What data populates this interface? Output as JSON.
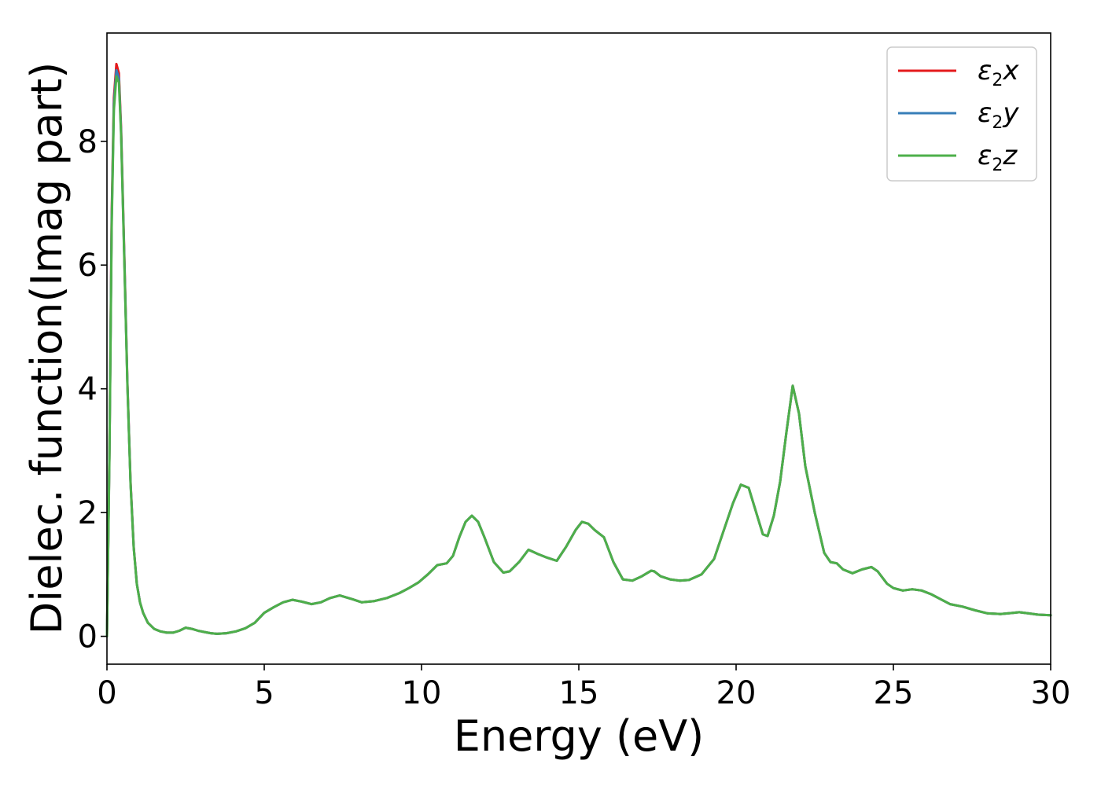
{
  "chart_data": {
    "type": "line",
    "xlabel": "Energy (eV)",
    "ylabel": "Dielec. function(Imag part)",
    "xlim": [
      0,
      30
    ],
    "ylim": [
      -0.45,
      9.75
    ],
    "xticks": [
      0,
      5,
      10,
      15,
      20,
      25,
      30
    ],
    "yticks": [
      0,
      2,
      4,
      6,
      8
    ],
    "grid": false,
    "legend_position": "top-right",
    "series": [
      {
        "name": "ε2x",
        "legend": {
          "base": "ε",
          "sub": "2",
          "axis": "x"
        },
        "color": "#e41a1c",
        "x": [
          0,
          0.08,
          0.15,
          0.22,
          0.3,
          0.38,
          0.45,
          0.55,
          0.65,
          0.75,
          0.85,
          0.95,
          1.05,
          1.15,
          1.3,
          1.5,
          1.7,
          1.9,
          2.1,
          2.3,
          2.5,
          2.7,
          2.9,
          3.1,
          3.3,
          3.5,
          3.8,
          4.1,
          4.4,
          4.7,
          5.0,
          5.3,
          5.6,
          5.9,
          6.2,
          6.5,
          6.8,
          7.1,
          7.4,
          7.8,
          8.1,
          8.5,
          8.9,
          9.3,
          9.6,
          9.9,
          10.2,
          10.5,
          10.8,
          11.0,
          11.2,
          11.4,
          11.6,
          11.8,
          12.0,
          12.3,
          12.6,
          12.8,
          13.1,
          13.4,
          13.7,
          14.0,
          14.3,
          14.6,
          14.9,
          15.1,
          15.3,
          15.5,
          15.8,
          16.1,
          16.4,
          16.7,
          17.0,
          17.3,
          17.4,
          17.6,
          17.9,
          18.2,
          18.5,
          18.9,
          19.3,
          19.6,
          19.9,
          20.15,
          20.4,
          20.7,
          20.85,
          21.0,
          21.2,
          21.4,
          21.6,
          21.8,
          22.0,
          22.2,
          22.5,
          22.8,
          23.0,
          23.2,
          23.4,
          23.7,
          24.0,
          24.3,
          24.5,
          24.8,
          25.0,
          25.3,
          25.6,
          25.9,
          26.2,
          26.5,
          26.8,
          27.2,
          27.6,
          28.0,
          28.4,
          28.8,
          29.0,
          29.3,
          29.6,
          30.0
        ],
        "y": [
          0.0,
          3.0,
          6.8,
          8.7,
          9.25,
          9.1,
          8.2,
          6.2,
          4.1,
          2.5,
          1.45,
          0.85,
          0.55,
          0.38,
          0.22,
          0.12,
          0.08,
          0.06,
          0.06,
          0.09,
          0.14,
          0.12,
          0.09,
          0.07,
          0.05,
          0.04,
          0.05,
          0.08,
          0.13,
          0.22,
          0.38,
          0.47,
          0.55,
          0.59,
          0.56,
          0.52,
          0.55,
          0.62,
          0.66,
          0.6,
          0.55,
          0.57,
          0.62,
          0.7,
          0.78,
          0.87,
          1.0,
          1.15,
          1.18,
          1.3,
          1.6,
          1.85,
          1.95,
          1.85,
          1.6,
          1.2,
          1.03,
          1.05,
          1.2,
          1.4,
          1.33,
          1.27,
          1.22,
          1.45,
          1.72,
          1.85,
          1.82,
          1.72,
          1.6,
          1.2,
          0.92,
          0.9,
          0.97,
          1.06,
          1.05,
          0.97,
          0.92,
          0.9,
          0.91,
          1.0,
          1.25,
          1.7,
          2.15,
          2.45,
          2.4,
          1.9,
          1.65,
          1.62,
          1.95,
          2.5,
          3.3,
          4.05,
          3.6,
          2.75,
          2.0,
          1.35,
          1.2,
          1.18,
          1.08,
          1.02,
          1.08,
          1.12,
          1.05,
          0.85,
          0.78,
          0.74,
          0.76,
          0.74,
          0.68,
          0.6,
          0.52,
          0.48,
          0.42,
          0.37,
          0.36,
          0.38,
          0.39,
          0.37,
          0.35,
          0.34
        ]
      },
      {
        "name": "ε2y",
        "legend": {
          "base": "ε",
          "sub": "2",
          "axis": "y"
        },
        "color": "#377eb8",
        "x": [
          0,
          0.08,
          0.15,
          0.22,
          0.3,
          0.38,
          0.45,
          0.55,
          0.65,
          0.75,
          0.85,
          0.95,
          1.05,
          1.15,
          1.3,
          1.5,
          1.7,
          1.9,
          2.1,
          2.3,
          2.5,
          2.7,
          2.9,
          3.1,
          3.3,
          3.5,
          3.8,
          4.1,
          4.4,
          4.7,
          5.0,
          5.3,
          5.6,
          5.9,
          6.2,
          6.5,
          6.8,
          7.1,
          7.4,
          7.8,
          8.1,
          8.5,
          8.9,
          9.3,
          9.6,
          9.9,
          10.2,
          10.5,
          10.8,
          11.0,
          11.2,
          11.4,
          11.6,
          11.8,
          12.0,
          12.3,
          12.6,
          12.8,
          13.1,
          13.4,
          13.7,
          14.0,
          14.3,
          14.6,
          14.9,
          15.1,
          15.3,
          15.5,
          15.8,
          16.1,
          16.4,
          16.7,
          17.0,
          17.3,
          17.4,
          17.6,
          17.9,
          18.2,
          18.5,
          18.9,
          19.3,
          19.6,
          19.9,
          20.15,
          20.4,
          20.7,
          20.85,
          21.0,
          21.2,
          21.4,
          21.6,
          21.8,
          22.0,
          22.2,
          22.5,
          22.8,
          23.0,
          23.2,
          23.4,
          23.7,
          24.0,
          24.3,
          24.5,
          24.8,
          25.0,
          25.3,
          25.6,
          25.9,
          26.2,
          26.5,
          26.8,
          27.2,
          27.6,
          28.0,
          28.4,
          28.8,
          29.0,
          29.3,
          29.6,
          30.0
        ],
        "y": [
          0.0,
          3.0,
          6.7,
          8.6,
          9.15,
          9.02,
          8.15,
          6.15,
          4.08,
          2.48,
          1.44,
          0.85,
          0.55,
          0.38,
          0.22,
          0.12,
          0.08,
          0.06,
          0.06,
          0.09,
          0.14,
          0.12,
          0.09,
          0.07,
          0.05,
          0.04,
          0.05,
          0.08,
          0.13,
          0.22,
          0.38,
          0.47,
          0.55,
          0.59,
          0.56,
          0.52,
          0.55,
          0.62,
          0.66,
          0.6,
          0.55,
          0.57,
          0.62,
          0.7,
          0.78,
          0.87,
          1.0,
          1.15,
          1.18,
          1.3,
          1.6,
          1.85,
          1.95,
          1.85,
          1.6,
          1.2,
          1.03,
          1.05,
          1.2,
          1.4,
          1.33,
          1.27,
          1.22,
          1.45,
          1.72,
          1.85,
          1.82,
          1.72,
          1.6,
          1.2,
          0.92,
          0.9,
          0.97,
          1.06,
          1.05,
          0.97,
          0.92,
          0.9,
          0.91,
          1.0,
          1.25,
          1.7,
          2.15,
          2.45,
          2.4,
          1.9,
          1.65,
          1.62,
          1.95,
          2.5,
          3.3,
          4.05,
          3.6,
          2.75,
          2.0,
          1.35,
          1.2,
          1.18,
          1.08,
          1.02,
          1.08,
          1.12,
          1.05,
          0.85,
          0.78,
          0.74,
          0.76,
          0.74,
          0.68,
          0.6,
          0.52,
          0.48,
          0.42,
          0.37,
          0.36,
          0.38,
          0.39,
          0.37,
          0.35,
          0.34
        ]
      },
      {
        "name": "ε2z",
        "legend": {
          "base": "ε",
          "sub": "2",
          "axis": "z"
        },
        "color": "#4daf4a",
        "x": [
          0,
          0.08,
          0.15,
          0.22,
          0.3,
          0.38,
          0.45,
          0.55,
          0.65,
          0.75,
          0.85,
          0.95,
          1.05,
          1.15,
          1.3,
          1.5,
          1.7,
          1.9,
          2.1,
          2.3,
          2.5,
          2.7,
          2.9,
          3.1,
          3.3,
          3.5,
          3.8,
          4.1,
          4.4,
          4.7,
          5.0,
          5.3,
          5.6,
          5.9,
          6.2,
          6.5,
          6.8,
          7.1,
          7.4,
          7.8,
          8.1,
          8.5,
          8.9,
          9.3,
          9.6,
          9.9,
          10.2,
          10.5,
          10.8,
          11.0,
          11.2,
          11.4,
          11.6,
          11.8,
          12.0,
          12.3,
          12.6,
          12.8,
          13.1,
          13.4,
          13.7,
          14.0,
          14.3,
          14.6,
          14.9,
          15.1,
          15.3,
          15.5,
          15.8,
          16.1,
          16.4,
          16.7,
          17.0,
          17.3,
          17.4,
          17.6,
          17.9,
          18.2,
          18.5,
          18.9,
          19.3,
          19.6,
          19.9,
          20.15,
          20.4,
          20.7,
          20.85,
          21.0,
          21.2,
          21.4,
          21.6,
          21.8,
          22.0,
          22.2,
          22.5,
          22.8,
          23.0,
          23.2,
          23.4,
          23.7,
          24.0,
          24.3,
          24.5,
          24.8,
          25.0,
          25.3,
          25.6,
          25.9,
          26.2,
          26.5,
          26.8,
          27.2,
          27.6,
          28.0,
          28.4,
          28.8,
          29.0,
          29.3,
          29.6,
          30.0
        ],
        "y": [
          0.0,
          2.9,
          6.6,
          8.5,
          9.05,
          8.95,
          8.1,
          6.1,
          4.05,
          2.46,
          1.43,
          0.84,
          0.55,
          0.38,
          0.22,
          0.12,
          0.08,
          0.06,
          0.06,
          0.09,
          0.14,
          0.12,
          0.09,
          0.07,
          0.05,
          0.04,
          0.05,
          0.08,
          0.13,
          0.22,
          0.38,
          0.47,
          0.55,
          0.59,
          0.56,
          0.52,
          0.55,
          0.62,
          0.66,
          0.6,
          0.55,
          0.57,
          0.62,
          0.7,
          0.78,
          0.87,
          1.0,
          1.15,
          1.18,
          1.3,
          1.6,
          1.85,
          1.95,
          1.85,
          1.6,
          1.2,
          1.03,
          1.05,
          1.2,
          1.4,
          1.33,
          1.27,
          1.22,
          1.45,
          1.72,
          1.85,
          1.82,
          1.72,
          1.6,
          1.2,
          0.92,
          0.9,
          0.97,
          1.06,
          1.05,
          0.97,
          0.92,
          0.9,
          0.91,
          1.0,
          1.25,
          1.7,
          2.15,
          2.45,
          2.4,
          1.9,
          1.65,
          1.62,
          1.95,
          2.5,
          3.3,
          4.05,
          3.6,
          2.75,
          2.0,
          1.35,
          1.2,
          1.18,
          1.08,
          1.02,
          1.08,
          1.12,
          1.05,
          0.85,
          0.78,
          0.74,
          0.76,
          0.74,
          0.68,
          0.6,
          0.52,
          0.48,
          0.42,
          0.37,
          0.36,
          0.38,
          0.39,
          0.37,
          0.35,
          0.34
        ]
      }
    ]
  }
}
